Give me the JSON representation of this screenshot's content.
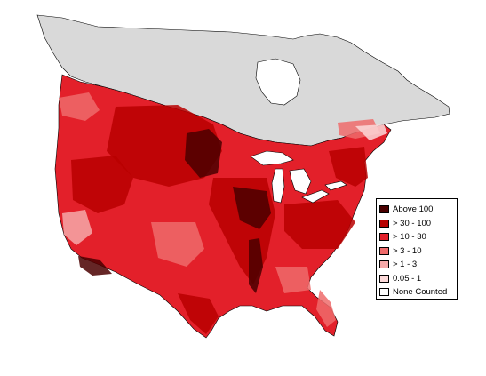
{
  "map": {
    "region": "North America",
    "colors": {
      "background": "#ffffff",
      "no_data": "#d9d9d9",
      "border": "#000000",
      "water": "#ffffff"
    }
  },
  "legend": {
    "items": [
      {
        "label": "Above 100",
        "color": "#4a0000"
      },
      {
        "label": "> 30 - 100",
        "color": "#b80000"
      },
      {
        "label": "> 10 - 30",
        "color": "#e3202a"
      },
      {
        "label": "> 3 - 10",
        "color": "#ef6b6b"
      },
      {
        "label": "> 1 - 3",
        "color": "#f6a9a9"
      },
      {
        "label": "0.05 - 1",
        "color": "#fcd9d9"
      },
      {
        "label": "None Counted",
        "color": "#ffffff"
      }
    ]
  }
}
